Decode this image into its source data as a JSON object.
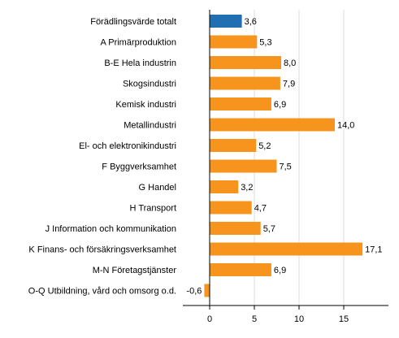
{
  "chart_data": {
    "type": "bar",
    "orientation": "horizontal",
    "categories": [
      "Förädlingsvärde totalt",
      "A Primärproduktion",
      "B-E Hela industrin",
      "Skogsindustri",
      "Kemisk industri",
      "Metallindustri",
      "El- och elektronikindustri",
      "F Byggverksamhet",
      "G Handel",
      "H Transport",
      "J Information och kommunikation",
      "K Finans- och försäkringsverksamhet",
      "M-N Företagstjänster",
      "O-Q Utbildning, vård och omsorg o.d."
    ],
    "values": [
      3.6,
      5.3,
      8.0,
      7.9,
      6.9,
      14.0,
      5.2,
      7.5,
      3.2,
      4.7,
      5.7,
      17.1,
      6.9,
      -0.6
    ],
    "value_labels": [
      "3,6",
      "5,3",
      "8,0",
      "7,9",
      "6,9",
      "14,0",
      "5,2",
      "7,5",
      "3,2",
      "4,7",
      "5,7",
      "17,1",
      "6,9",
      "-0,6"
    ],
    "highlight_index": 0,
    "xticks": [
      0,
      5,
      10,
      15
    ],
    "xtick_labels": [
      "0",
      "5",
      "10",
      "15"
    ],
    "xlim": [
      -3,
      20
    ],
    "grid": true,
    "colors": {
      "highlight": "#1f6fb2",
      "bar": "#f7941d",
      "grid": "#dddddd",
      "axis": "#000000"
    }
  }
}
